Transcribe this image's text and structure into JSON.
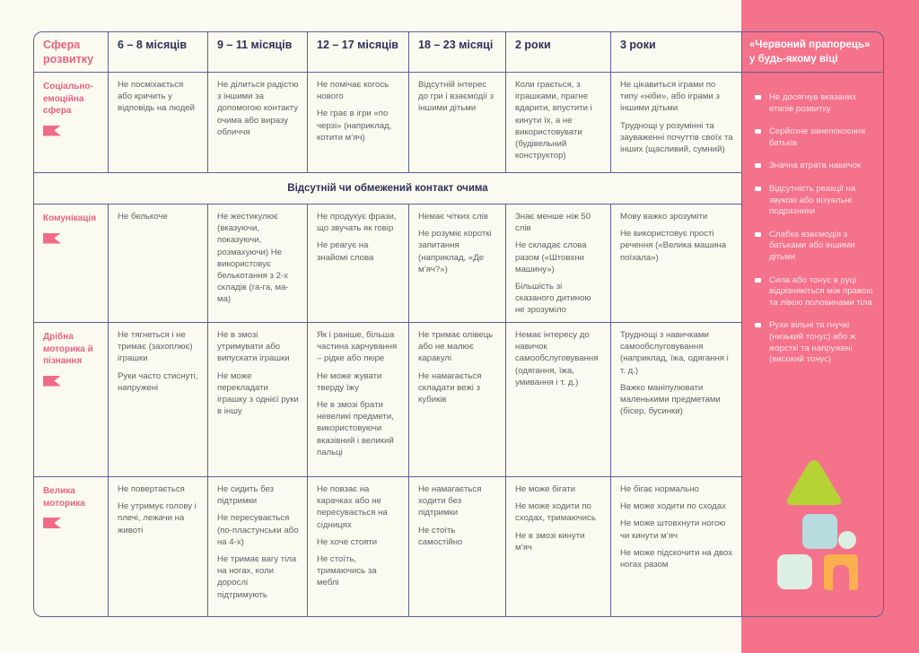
{
  "header": {
    "sphere": "Сфера розвитку",
    "ages": [
      "6 – 8 місяців",
      "9 – 11 місяців",
      "12 – 17 місяців",
      "18 – 23 місяці",
      "2 роки",
      "3 роки"
    ],
    "red_flag": "«Червоний прапорець» у будь-якому віці"
  },
  "rows": [
    {
      "label": "Соціально-емоційна сфера",
      "icon": "flag-icon",
      "cells": [
        [
          "Не посміхається або кричить у відповідь на людей"
        ],
        [
          "Не ділиться радістю з іншими за допомогою контакту очима або виразу обличчя"
        ],
        [
          "Не помічає когось нового",
          "Не грає в ігри «по черзі» (наприклад, котити м’яч)"
        ],
        [
          "Відсутній інтерес до гри і взаємодії з іншими дітьми"
        ],
        [
          "Коли грається, з іграшками, прагне вдарити, впустити і кинути їх, а не використовувати (будівельний конструктор)"
        ],
        [
          "Не цікавиться іграми по типу «ніби», або іграми з іншими дітьми",
          "Труднощі у розумінні та зауваженні почуттів своїх та інших (щасливий, сумний)"
        ]
      ]
    },
    {
      "banner": "Відсутній чи обмежений контакт очима"
    },
    {
      "label": "Комунікація",
      "icon": "flag-icon",
      "cells": [
        [
          "Не белькоче"
        ],
        [
          "Не жестикулює (вказуючи, показуючи, розмахуючи) Не використовує белькотання з 2-х складів (га-га, ма-ма)"
        ],
        [
          "Не продукує фрази, що звучать як говір",
          "Не реагує на знайомі слова"
        ],
        [
          "Немає чітких слів",
          "Не розуміє короткі запитання (наприклад, «Де м’яч?»)"
        ],
        [
          "Знає менше ніж 50 слів",
          "Не складає слова разом («Штовхни машину»)",
          "Більшість зі сказаного дитиною не зрозуміло"
        ],
        [
          "Мову важко зрозуміти",
          "Не використовує прості речення («Велика машина поїхала»)"
        ]
      ]
    },
    {
      "label": "Дрібна моторика й пізнання",
      "icon": "flag-icon",
      "cells": [
        [
          "Не тягнеться і не тримає (захоплює) іграшки",
          "Руки часто стиснуті, напружені"
        ],
        [
          "Не в змозі утримувати або випускати іграшки",
          "Не може перекладати іграшку з однієї руки в іншу"
        ],
        [
          "Як і раніше, більша частина харчування – рідке або пюре",
          "Не може жувати тверду їжу",
          "Не в змозі брати невеликі предмети, використовуючи вказівний і великий пальці"
        ],
        [
          "Не тримає олівець або не малює каракулі",
          "Не намагається складати вежі з кубиків"
        ],
        [
          "Немає інтересу до навичок самообслуговування (одягання, їжа, умивання і т. д.)"
        ],
        [
          "Труднощі з навичками самообслуговування (наприклад, їжа, одягання і т. д.)",
          "Важко маніпулювати маленькими предметами (бісер, бусинки)"
        ]
      ]
    },
    {
      "label": "Велика моторика",
      "icon": "flag-icon",
      "cells": [
        [
          "Не повертається",
          "Не утримує голову і плечі, лежачи на животі"
        ],
        [
          "Не сидить без підтримки",
          "Не пересувається (по-пластунськи або на 4-х)",
          "Не тримає вагу тіла на ногах, коли дорослі підтримують"
        ],
        [
          "Не повзає на карачках або не пересувається на сідницях",
          "Не хоче стояти",
          "Не стоїть, тримаючись за меблі"
        ],
        [
          "Не намагається ходити без підтримки",
          "Не стоїть самостійно"
        ],
        [
          "Не може бігати",
          "Не може ходити по сходах, тримаючись",
          "Не в змозі кинути м’яч"
        ],
        [
          "Не бігає нормально",
          "Не може ходити по сходах",
          "Не може штовхнути ногою чи кинути м’яч",
          "Не може підскочити на двох ногах разом"
        ]
      ]
    }
  ],
  "red_flags": [
    "Не досягнув вказаних етапів розвитку",
    "Серйозне занепокоєння батьків",
    "Значна втрата навичок",
    "Відсутність реакції на звукові або візуальні подразники",
    "Слабка взаємодія з батьками або іншими дітьми",
    "Сила або тонус в руці відрізняються між правою та лівою половинами тіла",
    "Рухи вільні та гнучкі (низький тонус) або ж жорсткі та напружені (високий тонус)"
  ],
  "colors": {
    "accent_pink": "#f5728b",
    "heading_pink": "#e8647f",
    "border": "#5d6190",
    "navy": "#2e3157",
    "background": "#fbfaf1",
    "triangle": "#b5d334",
    "blue_block": "#b8dbe0",
    "mint_block": "#dcefe3",
    "orange_arch": "#fbb04f"
  }
}
